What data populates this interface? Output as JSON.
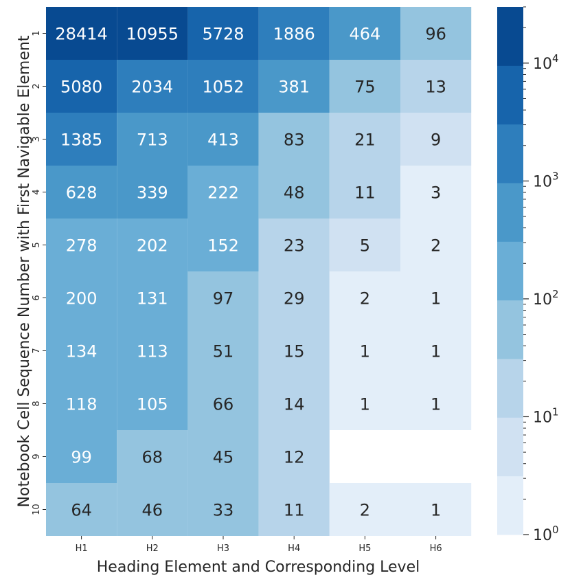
{
  "chart_data": {
    "type": "heatmap",
    "xlabel": "Heading Element and Corresponding Level",
    "ylabel": "Notebook Cell Sequence Number with First Navigable Element",
    "x_categories": [
      "H1",
      "H2",
      "H3",
      "H4",
      "H5",
      "H6"
    ],
    "y_categories": [
      "1",
      "2",
      "3",
      "4",
      "5",
      "6",
      "7",
      "8",
      "9",
      "10"
    ],
    "values": [
      [
        28414,
        10955,
        5728,
        1886,
        464,
        96
      ],
      [
        5080,
        2034,
        1052,
        381,
        75,
        13
      ],
      [
        1385,
        713,
        413,
        83,
        21,
        9
      ],
      [
        628,
        339,
        222,
        48,
        11,
        3
      ],
      [
        278,
        202,
        152,
        23,
        5,
        2
      ],
      [
        200,
        131,
        97,
        29,
        2,
        1
      ],
      [
        134,
        113,
        51,
        15,
        1,
        1
      ],
      [
        118,
        105,
        66,
        14,
        1,
        1
      ],
      [
        99,
        68,
        45,
        12,
        null,
        null
      ],
      [
        64,
        46,
        33,
        11,
        2,
        1
      ]
    ],
    "colorbar": {
      "scale": "log",
      "range": [
        1,
        30000
      ],
      "tick_labels": [
        {
          "base": "10",
          "exp": "0",
          "value": 1
        },
        {
          "base": "10",
          "exp": "1",
          "value": 10
        },
        {
          "base": "10",
          "exp": "2",
          "value": 100
        },
        {
          "base": "10",
          "exp": "3",
          "value": 1000
        },
        {
          "base": "10",
          "exp": "4",
          "value": 10000
        }
      ],
      "palette": [
        "#e3eef9",
        "#d0e1f2",
        "#b7d4ea",
        "#94c4df",
        "#6aaed6",
        "#4a98c9",
        "#2e7ebc",
        "#1764ab",
        "#084a91"
      ]
    },
    "text_colors": {
      "dark": "#262626",
      "light": "#ffffff"
    }
  }
}
